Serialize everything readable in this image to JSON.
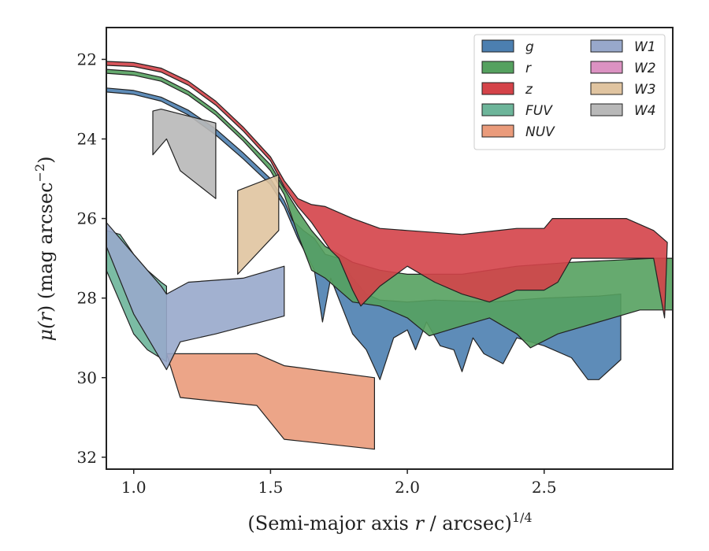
{
  "chart_data": {
    "type": "area",
    "xlabel_main": "(Semi-major axis ",
    "xlabel_var": "r",
    "xlabel_tail": " / arcsec)",
    "xlabel_sup": "1/4",
    "ylabel_main": "μ(",
    "ylabel_var": "r",
    "ylabel_tail": ") (mag arcsec",
    "ylabel_sup": "−2",
    "ylabel_close": ")",
    "xlim": [
      0.9,
      2.97
    ],
    "ylim": [
      32.3,
      21.2
    ],
    "y_inverted": true,
    "xticks": [
      1.0,
      1.5,
      2.0,
      2.5
    ],
    "xtick_labels": [
      "1.0",
      "1.5",
      "2.0",
      "2.5"
    ],
    "yticks": [
      22,
      24,
      26,
      28,
      30,
      32
    ],
    "ytick_labels": [
      "22",
      "24",
      "26",
      "28",
      "30",
      "32"
    ],
    "grid": false,
    "legend_placement": "top-right",
    "legend_columns": 2,
    "series": [
      {
        "name": "g",
        "color": "#4c7fb0",
        "upper": [
          [
            0.9,
            22.72
          ],
          [
            1.0,
            22.78
          ],
          [
            1.1,
            22.95
          ],
          [
            1.2,
            23.28
          ],
          [
            1.3,
            23.75
          ],
          [
            1.4,
            24.35
          ],
          [
            1.5,
            25.0
          ],
          [
            1.55,
            25.55
          ],
          [
            1.58,
            26.05
          ],
          [
            1.62,
            26.3
          ],
          [
            1.66,
            26.5
          ],
          [
            1.7,
            26.9
          ],
          [
            1.75,
            27.0
          ],
          [
            1.8,
            27.5
          ],
          [
            1.85,
            27.9
          ],
          [
            1.9,
            28.05
          ],
          [
            2.0,
            28.1
          ],
          [
            2.1,
            28.05
          ],
          [
            2.3,
            28.1
          ],
          [
            2.5,
            28.0
          ],
          [
            2.7,
            27.95
          ],
          [
            2.78,
            27.9
          ]
        ],
        "lower": [
          [
            0.9,
            22.82
          ],
          [
            1.0,
            22.88
          ],
          [
            1.1,
            23.05
          ],
          [
            1.2,
            23.4
          ],
          [
            1.3,
            23.9
          ],
          [
            1.4,
            24.5
          ],
          [
            1.5,
            25.15
          ],
          [
            1.55,
            25.7
          ],
          [
            1.6,
            26.5
          ],
          [
            1.63,
            26.9
          ],
          [
            1.66,
            27.3
          ],
          [
            1.69,
            28.6
          ],
          [
            1.72,
            27.5
          ],
          [
            1.76,
            28.2
          ],
          [
            1.8,
            28.9
          ],
          [
            1.85,
            29.3
          ],
          [
            1.9,
            30.05
          ],
          [
            1.95,
            29.0
          ],
          [
            2.0,
            28.8
          ],
          [
            2.03,
            29.3
          ],
          [
            2.07,
            28.6
          ],
          [
            2.12,
            29.2
          ],
          [
            2.17,
            29.3
          ],
          [
            2.2,
            29.85
          ],
          [
            2.24,
            29.0
          ],
          [
            2.28,
            29.4
          ],
          [
            2.35,
            29.65
          ],
          [
            2.4,
            29.0
          ],
          [
            2.5,
            29.2
          ],
          [
            2.6,
            29.5
          ],
          [
            2.66,
            30.05
          ],
          [
            2.7,
            30.05
          ],
          [
            2.78,
            29.55
          ]
        ]
      },
      {
        "name": "r",
        "color": "#55a15f",
        "upper": [
          [
            0.9,
            22.25
          ],
          [
            1.0,
            22.3
          ],
          [
            1.1,
            22.45
          ],
          [
            1.2,
            22.8
          ],
          [
            1.3,
            23.3
          ],
          [
            1.4,
            23.95
          ],
          [
            1.5,
            24.65
          ],
          [
            1.55,
            25.25
          ],
          [
            1.6,
            25.8
          ],
          [
            1.65,
            26.3
          ],
          [
            1.7,
            26.7
          ],
          [
            1.75,
            26.9
          ],
          [
            1.8,
            27.1
          ],
          [
            1.9,
            27.3
          ],
          [
            2.0,
            27.4
          ],
          [
            2.2,
            27.4
          ],
          [
            2.4,
            27.2
          ],
          [
            2.6,
            27.1
          ],
          [
            2.9,
            27.0
          ],
          [
            2.97,
            27.0
          ]
        ],
        "lower": [
          [
            0.9,
            22.35
          ],
          [
            1.0,
            22.4
          ],
          [
            1.1,
            22.55
          ],
          [
            1.2,
            22.9
          ],
          [
            1.3,
            23.4
          ],
          [
            1.4,
            24.05
          ],
          [
            1.5,
            24.8
          ],
          [
            1.55,
            25.4
          ],
          [
            1.6,
            26.4
          ],
          [
            1.65,
            27.3
          ],
          [
            1.7,
            27.5
          ],
          [
            1.75,
            27.8
          ],
          [
            1.8,
            28.1
          ],
          [
            1.9,
            28.2
          ],
          [
            2.0,
            28.5
          ],
          [
            2.08,
            28.95
          ],
          [
            2.2,
            28.7
          ],
          [
            2.3,
            28.5
          ],
          [
            2.4,
            28.9
          ],
          [
            2.45,
            29.25
          ],
          [
            2.55,
            28.9
          ],
          [
            2.7,
            28.6
          ],
          [
            2.85,
            28.3
          ],
          [
            2.97,
            28.3
          ]
        ]
      },
      {
        "name": "z",
        "color": "#d44349",
        "upper": [
          [
            0.9,
            22.05
          ],
          [
            1.0,
            22.08
          ],
          [
            1.1,
            22.22
          ],
          [
            1.2,
            22.55
          ],
          [
            1.3,
            23.05
          ],
          [
            1.4,
            23.7
          ],
          [
            1.5,
            24.45
          ],
          [
            1.55,
            25.05
          ],
          [
            1.6,
            25.5
          ],
          [
            1.65,
            25.65
          ],
          [
            1.7,
            25.7
          ],
          [
            1.8,
            26.0
          ],
          [
            1.9,
            26.25
          ],
          [
            2.0,
            26.3
          ],
          [
            2.2,
            26.4
          ],
          [
            2.4,
            26.25
          ],
          [
            2.5,
            26.25
          ],
          [
            2.53,
            26.0
          ],
          [
            2.6,
            26.0
          ],
          [
            2.8,
            26.0
          ],
          [
            2.9,
            26.3
          ],
          [
            2.95,
            26.6
          ]
        ],
        "lower": [
          [
            0.9,
            22.15
          ],
          [
            1.0,
            22.18
          ],
          [
            1.1,
            22.32
          ],
          [
            1.2,
            22.65
          ],
          [
            1.3,
            23.15
          ],
          [
            1.4,
            23.8
          ],
          [
            1.5,
            24.55
          ],
          [
            1.55,
            25.2
          ],
          [
            1.6,
            25.7
          ],
          [
            1.65,
            26.1
          ],
          [
            1.68,
            26.4
          ],
          [
            1.72,
            26.8
          ],
          [
            1.75,
            27.0
          ],
          [
            1.8,
            27.8
          ],
          [
            1.83,
            28.2
          ],
          [
            1.9,
            27.7
          ],
          [
            2.0,
            27.2
          ],
          [
            2.1,
            27.6
          ],
          [
            2.2,
            27.9
          ],
          [
            2.3,
            28.1
          ],
          [
            2.4,
            27.8
          ],
          [
            2.5,
            27.8
          ],
          [
            2.55,
            27.6
          ],
          [
            2.6,
            27.0
          ],
          [
            2.7,
            27.0
          ],
          [
            2.85,
            27.0
          ],
          [
            2.9,
            27.0
          ],
          [
            2.94,
            28.5
          ]
        ]
      },
      {
        "name": "FUV",
        "color": "#6db59a",
        "polygon": [
          [
            0.9,
            26.3
          ],
          [
            0.95,
            26.4
          ],
          [
            1.0,
            26.9
          ],
          [
            1.05,
            27.3
          ],
          [
            1.1,
            27.6
          ],
          [
            1.12,
            27.7
          ],
          [
            1.12,
            29.6
          ],
          [
            1.05,
            29.3
          ],
          [
            1.0,
            28.9
          ],
          [
            0.9,
            27.3
          ]
        ]
      },
      {
        "name": "NUV",
        "color": "#ea9b7b",
        "polygon": [
          [
            1.12,
            29.4
          ],
          [
            1.45,
            29.4
          ],
          [
            1.55,
            29.7
          ],
          [
            1.88,
            30.0
          ],
          [
            1.88,
            31.8
          ],
          [
            1.55,
            31.55
          ],
          [
            1.45,
            30.7
          ],
          [
            1.17,
            30.5
          ]
        ]
      },
      {
        "name": "W1",
        "color": "#98a8cb",
        "polygon": [
          [
            0.9,
            26.1
          ],
          [
            1.0,
            26.9
          ],
          [
            1.1,
            27.7
          ],
          [
            1.12,
            27.9
          ],
          [
            1.2,
            27.6
          ],
          [
            1.4,
            27.5
          ],
          [
            1.55,
            27.2
          ],
          [
            1.55,
            28.45
          ],
          [
            1.3,
            28.9
          ],
          [
            1.17,
            29.1
          ],
          [
            1.12,
            29.8
          ],
          [
            1.0,
            28.4
          ],
          [
            0.9,
            26.7
          ]
        ]
      },
      {
        "name": "W2",
        "color": "#dc92c2",
        "polygon": []
      },
      {
        "name": "W3",
        "color": "#e0c4a0",
        "polygon": [
          [
            1.38,
            25.3
          ],
          [
            1.53,
            24.9
          ],
          [
            1.53,
            26.3
          ],
          [
            1.38,
            27.4
          ]
        ]
      },
      {
        "name": "W4",
        "color": "#b8b8b8",
        "polygon": [
          [
            1.07,
            23.3
          ],
          [
            1.1,
            23.25
          ],
          [
            1.3,
            23.6
          ],
          [
            1.3,
            25.5
          ],
          [
            1.17,
            24.8
          ],
          [
            1.12,
            24.0
          ],
          [
            1.07,
            24.4
          ]
        ]
      }
    ]
  }
}
